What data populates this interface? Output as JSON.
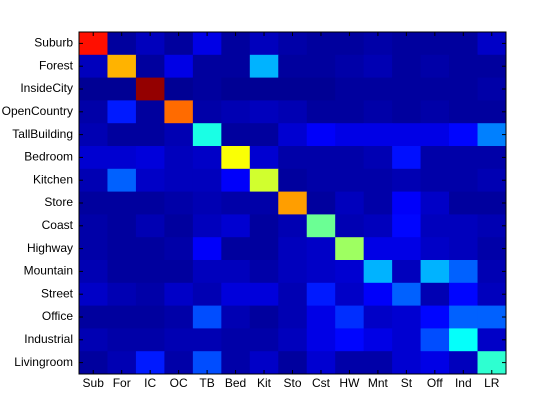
{
  "chart_data": {
    "type": "heatmap",
    "colormap": "jet",
    "clim": [
      0,
      1
    ],
    "x_categories": [
      "Sub",
      "For",
      "IC",
      "OC",
      "TB",
      "Bed",
      "Kit",
      "Sto",
      "Cst",
      "HW",
      "Mnt",
      "St",
      "Off",
      "Ind",
      "LR"
    ],
    "y_categories": [
      "Suburb",
      "Forest",
      "InsideCity",
      "OpenCountry",
      "TallBuilding",
      "Bedroom",
      "Kitchen",
      "Store",
      "Coast",
      "Highway",
      "Mountain",
      "Street",
      "Office",
      "Industrial",
      "Livingroom"
    ],
    "values": [
      [
        0.86,
        0.03,
        0.06,
        0.03,
        0.1,
        0.03,
        0.06,
        0.04,
        0.03,
        0.03,
        0.04,
        0.03,
        0.03,
        0.03,
        0.07
      ],
      [
        0.06,
        0.7,
        0.03,
        0.1,
        0.03,
        0.03,
        0.3,
        0.03,
        0.03,
        0.04,
        0.05,
        0.03,
        0.04,
        0.03,
        0.03
      ],
      [
        0.02,
        0.02,
        0.98,
        0.02,
        0.03,
        0.02,
        0.02,
        0.02,
        0.02,
        0.03,
        0.03,
        0.03,
        0.03,
        0.03,
        0.04
      ],
      [
        0.04,
        0.15,
        0.03,
        0.77,
        0.04,
        0.05,
        0.06,
        0.05,
        0.03,
        0.03,
        0.04,
        0.03,
        0.04,
        0.03,
        0.03
      ],
      [
        0.05,
        0.03,
        0.03,
        0.05,
        0.4,
        0.03,
        0.03,
        0.08,
        0.12,
        0.1,
        0.1,
        0.1,
        0.1,
        0.13,
        0.25
      ],
      [
        0.08,
        0.08,
        0.09,
        0.06,
        0.07,
        0.62,
        0.08,
        0.04,
        0.04,
        0.04,
        0.05,
        0.14,
        0.04,
        0.04,
        0.04
      ],
      [
        0.05,
        0.22,
        0.07,
        0.06,
        0.06,
        0.12,
        0.58,
        0.03,
        0.04,
        0.04,
        0.04,
        0.05,
        0.04,
        0.04,
        0.05
      ],
      [
        0.03,
        0.03,
        0.03,
        0.04,
        0.05,
        0.04,
        0.04,
        0.72,
        0.03,
        0.06,
        0.04,
        0.12,
        0.07,
        0.03,
        0.03
      ],
      [
        0.04,
        0.03,
        0.05,
        0.03,
        0.06,
        0.08,
        0.03,
        0.05,
        0.48,
        0.05,
        0.06,
        0.13,
        0.06,
        0.06,
        0.05
      ],
      [
        0.04,
        0.03,
        0.03,
        0.04,
        0.12,
        0.03,
        0.03,
        0.06,
        0.07,
        0.53,
        0.1,
        0.1,
        0.07,
        0.06,
        0.04
      ],
      [
        0.05,
        0.03,
        0.03,
        0.03,
        0.06,
        0.06,
        0.04,
        0.06,
        0.07,
        0.08,
        0.3,
        0.06,
        0.3,
        0.22,
        0.05
      ],
      [
        0.07,
        0.05,
        0.04,
        0.07,
        0.05,
        0.09,
        0.09,
        0.05,
        0.15,
        0.07,
        0.12,
        0.22,
        0.05,
        0.13,
        0.06
      ],
      [
        0.03,
        0.03,
        0.03,
        0.04,
        0.2,
        0.05,
        0.03,
        0.05,
        0.1,
        0.17,
        0.07,
        0.08,
        0.13,
        0.22,
        0.22
      ],
      [
        0.05,
        0.04,
        0.04,
        0.05,
        0.05,
        0.04,
        0.04,
        0.06,
        0.1,
        0.13,
        0.1,
        0.08,
        0.2,
        0.38,
        0.07
      ],
      [
        0.03,
        0.05,
        0.15,
        0.04,
        0.2,
        0.04,
        0.07,
        0.03,
        0.08,
        0.04,
        0.04,
        0.08,
        0.1,
        0.06,
        0.42
      ]
    ]
  }
}
